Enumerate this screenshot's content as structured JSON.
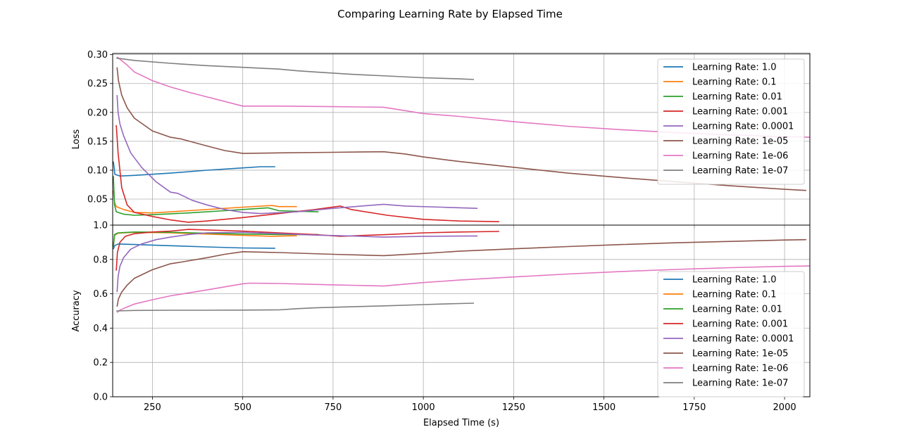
{
  "figure_title": "Comparing Learning Rate by Elapsed Time",
  "colors": [
    "#1f77b4",
    "#ff7f0e",
    "#2ca02c",
    "#d62728",
    "#9467bd",
    "#8c564b",
    "#e377c2",
    "#7f7f7f"
  ],
  "chart_data": [
    {
      "type": "line",
      "panel": "top",
      "ylabel": "Loss",
      "xlabel": "",
      "xlim": [
        140,
        2070
      ],
      "ylim": [
        0.005,
        0.302
      ],
      "xticks": [
        250,
        500,
        750,
        1000,
        1250,
        1500,
        1750,
        2000
      ],
      "yticks": [
        0.05,
        0.1,
        0.15,
        0.2,
        0.25,
        0.3
      ],
      "ytick_labels": [
        "0.05",
        "0.10",
        "0.15",
        "0.20",
        "0.25",
        "0.30"
      ],
      "grid": true,
      "legend": "upper right",
      "series": [
        {
          "name": "Learning Rate: 1.0",
          "x": [
            142,
            146,
            160,
            200,
            300,
            400,
            500,
            550,
            590
          ],
          "y": [
            0.115,
            0.093,
            0.09,
            0.091,
            0.095,
            0.1,
            0.104,
            0.106,
            0.106
          ]
        },
        {
          "name": "Learning Rate: 0.1",
          "x": [
            142,
            145,
            150,
            170,
            200,
            250,
            350,
            450,
            500,
            580,
            600,
            650
          ],
          "y": [
            0.065,
            0.045,
            0.037,
            0.032,
            0.027,
            0.026,
            0.03,
            0.034,
            0.036,
            0.039,
            0.037,
            0.037
          ]
        },
        {
          "name": "Learning Rate: 0.01",
          "x": [
            142,
            145,
            150,
            170,
            200,
            250,
            350,
            450,
            500,
            570,
            600,
            650,
            710
          ],
          "y": [
            0.09,
            0.04,
            0.028,
            0.024,
            0.022,
            0.023,
            0.026,
            0.03,
            0.032,
            0.035,
            0.03,
            0.029,
            0.028
          ]
        },
        {
          "name": "Learning Rate: 0.001",
          "x": [
            150,
            155,
            165,
            180,
            200,
            250,
            300,
            350,
            400,
            500,
            600,
            700,
            770,
            800,
            900,
            1000,
            1100,
            1210
          ],
          "y": [
            0.178,
            0.13,
            0.07,
            0.04,
            0.027,
            0.02,
            0.014,
            0.01,
            0.012,
            0.018,
            0.025,
            0.032,
            0.038,
            0.032,
            0.022,
            0.015,
            0.012,
            0.011
          ]
        },
        {
          "name": "Learning Rate: 0.0001",
          "x": [
            152,
            155,
            160,
            170,
            190,
            220,
            260,
            300,
            320,
            340,
            360,
            400,
            450,
            500,
            550,
            650,
            750,
            890,
            950,
            1050,
            1150
          ],
          "y": [
            0.23,
            0.2,
            0.18,
            0.16,
            0.13,
            0.105,
            0.08,
            0.062,
            0.06,
            0.054,
            0.048,
            0.04,
            0.032,
            0.027,
            0.025,
            0.028,
            0.034,
            0.041,
            0.038,
            0.036,
            0.034
          ]
        },
        {
          "name": "Learning Rate: 1e-05",
          "x": [
            152,
            156,
            165,
            180,
            200,
            250,
            300,
            330,
            400,
            450,
            500,
            600,
            750,
            890,
            950,
            1000,
            1100,
            1250,
            1400,
            1550,
            1700,
            1850,
            2000,
            2060
          ],
          "y": [
            0.278,
            0.255,
            0.23,
            0.208,
            0.19,
            0.168,
            0.157,
            0.154,
            0.142,
            0.134,
            0.129,
            0.13,
            0.131,
            0.132,
            0.128,
            0.123,
            0.115,
            0.105,
            0.095,
            0.087,
            0.08,
            0.073,
            0.067,
            0.065
          ]
        },
        {
          "name": "Learning Rate: 1e-06",
          "x": [
            152,
            160,
            180,
            200,
            250,
            300,
            350,
            400,
            450,
            500,
            520,
            600,
            750,
            890,
            950,
            1000,
            1100,
            1250,
            1400,
            1550,
            1700,
            1850,
            2000,
            2070
          ],
          "y": [
            0.296,
            0.292,
            0.282,
            0.27,
            0.255,
            0.244,
            0.235,
            0.227,
            0.219,
            0.211,
            0.211,
            0.211,
            0.21,
            0.209,
            0.203,
            0.198,
            0.193,
            0.184,
            0.176,
            0.17,
            0.165,
            0.161,
            0.158,
            0.157
          ]
        },
        {
          "name": "Learning Rate: 1e-07",
          "x": [
            150,
            200,
            300,
            400,
            500,
            600,
            650,
            700,
            800,
            900,
            1000,
            1050,
            1100,
            1140
          ],
          "y": [
            0.294,
            0.29,
            0.285,
            0.281,
            0.278,
            0.275,
            0.272,
            0.27,
            0.266,
            0.263,
            0.26,
            0.259,
            0.258,
            0.257
          ]
        }
      ]
    },
    {
      "type": "line",
      "panel": "bottom",
      "ylabel": "Accuracy",
      "xlabel": "Elapsed Time (s)",
      "xlim": [
        140,
        2070
      ],
      "ylim": [
        0.0,
        1.0
      ],
      "xticks": [
        250,
        500,
        750,
        1000,
        1250,
        1500,
        1750,
        2000
      ],
      "yticks": [
        0.0,
        0.2,
        0.4,
        0.6,
        0.8,
        1.0
      ],
      "ytick_labels": [
        "0.0",
        "0.2",
        "0.4",
        "0.6",
        "0.8",
        "1.0"
      ],
      "grid": true,
      "legend": "lower right",
      "series": [
        {
          "name": "Learning Rate: 1.0",
          "x": [
            142,
            145,
            155,
            200,
            300,
            400,
            500,
            590
          ],
          "y": [
            0.86,
            0.88,
            0.89,
            0.887,
            0.88,
            0.873,
            0.867,
            0.865
          ]
        },
        {
          "name": "Learning Rate: 0.1",
          "x": [
            142,
            145,
            155,
            200,
            300,
            400,
            500,
            580,
            650
          ],
          "y": [
            0.88,
            0.94,
            0.953,
            0.958,
            0.955,
            0.948,
            0.94,
            0.935,
            0.938
          ]
        },
        {
          "name": "Learning Rate: 0.01",
          "x": [
            142,
            145,
            155,
            200,
            300,
            400,
            500,
            600,
            710
          ],
          "y": [
            0.87,
            0.945,
            0.955,
            0.96,
            0.958,
            0.953,
            0.948,
            0.945,
            0.945
          ]
        },
        {
          "name": "Learning Rate: 0.001",
          "x": [
            150,
            153,
            160,
            175,
            200,
            250,
            300,
            350,
            500,
            600,
            700,
            770,
            900,
            1000,
            1100,
            1210
          ],
          "y": [
            0.735,
            0.84,
            0.9,
            0.935,
            0.95,
            0.96,
            0.965,
            0.975,
            0.965,
            0.955,
            0.945,
            0.935,
            0.945,
            0.955,
            0.96,
            0.963
          ]
        },
        {
          "name": "Learning Rate: 0.0001",
          "x": [
            152,
            155,
            160,
            170,
            190,
            220,
            260,
            300,
            350,
            400,
            500,
            600,
            700,
            800,
            890,
            1000,
            1150
          ],
          "y": [
            0.61,
            0.7,
            0.76,
            0.81,
            0.86,
            0.89,
            0.915,
            0.93,
            0.945,
            0.955,
            0.958,
            0.95,
            0.942,
            0.937,
            0.93,
            0.935,
            0.937
          ]
        },
        {
          "name": "Learning Rate: 1e-05",
          "x": [
            152,
            156,
            165,
            180,
            200,
            250,
            300,
            330,
            400,
            450,
            500,
            600,
            750,
            890,
            1000,
            1100,
            1250,
            1400,
            1550,
            1700,
            1850,
            2000,
            2060
          ],
          "y": [
            0.525,
            0.57,
            0.61,
            0.65,
            0.69,
            0.74,
            0.775,
            0.785,
            0.81,
            0.83,
            0.845,
            0.84,
            0.83,
            0.822,
            0.835,
            0.848,
            0.862,
            0.875,
            0.887,
            0.897,
            0.905,
            0.913,
            0.915
          ]
        },
        {
          "name": "Learning Rate: 1e-06",
          "x": [
            152,
            160,
            180,
            200,
            250,
            300,
            350,
            400,
            450,
            500,
            520,
            600,
            750,
            890,
            1000,
            1100,
            1250,
            1400,
            1550,
            1700,
            1850,
            2000,
            2070
          ],
          "y": [
            0.49,
            0.505,
            0.523,
            0.54,
            0.565,
            0.588,
            0.605,
            0.622,
            0.64,
            0.658,
            0.662,
            0.66,
            0.652,
            0.645,
            0.665,
            0.68,
            0.698,
            0.715,
            0.73,
            0.742,
            0.752,
            0.76,
            0.762
          ]
        },
        {
          "name": "Learning Rate: 1e-07",
          "x": [
            150,
            200,
            300,
            400,
            500,
            600,
            650,
            700,
            800,
            900,
            1000,
            1050,
            1100,
            1140
          ],
          "y": [
            0.5,
            0.503,
            0.504,
            0.504,
            0.505,
            0.506,
            0.513,
            0.518,
            0.524,
            0.53,
            0.537,
            0.54,
            0.543,
            0.545
          ]
        }
      ]
    }
  ]
}
